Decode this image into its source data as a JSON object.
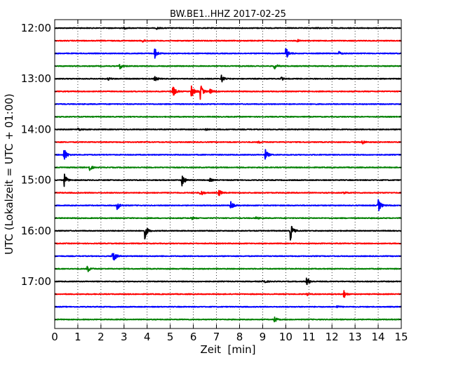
{
  "chart_data": {
    "type": "line",
    "title": "BW.BE1..HHZ 2017-02-25",
    "xlabel": "Zeit  [min]",
    "ylabel": "UTC (Lokalzeit = UTC + 01:00)",
    "xlim": [
      0,
      15
    ],
    "xticks": [
      "0",
      "1",
      "2",
      "3",
      "4",
      "5",
      "6",
      "7",
      "8",
      "9",
      "10",
      "11",
      "12",
      "13",
      "14",
      "15"
    ],
    "y_tick_labels": [
      "12:00",
      "13:00",
      "14:00",
      "15:00",
      "16:00",
      "17:00"
    ],
    "grid": "vertical dotted lines at each minute",
    "colors": [
      "#000000",
      "#ff0000",
      "#0000ff",
      "#008000"
    ],
    "series": [
      {
        "start": "12:00",
        "events": [
          [
            3.0,
            0.12
          ],
          [
            4.4,
            0.15
          ],
          [
            11.3,
            0.1
          ]
        ]
      },
      {
        "start": "12:15",
        "events": [
          [
            3.8,
            0.2
          ],
          [
            10.5,
            0.15
          ]
        ]
      },
      {
        "start": "12:30",
        "events": [
          [
            4.3,
            1.0
          ],
          [
            10.0,
            0.9
          ],
          [
            12.3,
            0.25
          ]
        ]
      },
      {
        "start": "12:45",
        "events": [
          [
            2.8,
            0.45
          ],
          [
            9.5,
            0.45
          ]
        ]
      },
      {
        "start": "13:00",
        "events": [
          [
            2.3,
            0.2
          ],
          [
            4.3,
            0.5
          ],
          [
            7.2,
            0.6
          ],
          [
            9.8,
            0.2
          ]
        ]
      },
      {
        "start": "13:15",
        "events": [
          [
            5.1,
            0.9
          ],
          [
            5.9,
            1.1
          ],
          [
            6.3,
            1.0
          ],
          [
            6.7,
            0.4
          ]
        ]
      },
      {
        "start": "13:30",
        "events": []
      },
      {
        "start": "13:45",
        "events": []
      },
      {
        "start": "14:00",
        "events": [
          [
            1.0,
            0.2
          ],
          [
            6.5,
            0.15
          ]
        ]
      },
      {
        "start": "14:15",
        "events": [
          [
            8.8,
            0.2
          ],
          [
            13.3,
            0.35
          ]
        ]
      },
      {
        "start": "14:30",
        "events": [
          [
            0.4,
            1.0
          ],
          [
            9.1,
            0.85
          ]
        ]
      },
      {
        "start": "14:45",
        "events": [
          [
            1.5,
            0.45
          ]
        ]
      },
      {
        "start": "15:00",
        "events": [
          [
            0.4,
            1.0
          ],
          [
            5.5,
            1.0
          ],
          [
            6.7,
            0.25
          ]
        ]
      },
      {
        "start": "15:15",
        "events": [
          [
            6.3,
            0.55
          ],
          [
            7.1,
            0.5
          ],
          [
            12.5,
            0.2
          ]
        ]
      },
      {
        "start": "15:30",
        "events": [
          [
            2.7,
            0.7
          ],
          [
            7.6,
            0.65
          ],
          [
            14.0,
            1.0
          ]
        ]
      },
      {
        "start": "15:45",
        "events": [
          [
            5.9,
            0.2
          ],
          [
            8.7,
            0.2
          ]
        ]
      },
      {
        "start": "16:00",
        "events": [
          [
            3.9,
            1.0
          ],
          [
            10.2,
            1.2
          ]
        ]
      },
      {
        "start": "16:15",
        "events": []
      },
      {
        "start": "16:30",
        "events": [
          [
            2.5,
            1.3
          ]
        ]
      },
      {
        "start": "16:45",
        "events": [
          [
            1.4,
            0.6
          ]
        ]
      },
      {
        "start": "17:00",
        "events": [
          [
            9.0,
            0.4
          ],
          [
            10.9,
            0.7
          ]
        ]
      },
      {
        "start": "17:15",
        "events": [
          [
            10.9,
            0.2
          ],
          [
            12.5,
            0.6
          ]
        ]
      },
      {
        "start": "17:30",
        "events": [
          [
            12.2,
            0.15
          ]
        ]
      },
      {
        "start": "17:45",
        "events": [
          [
            9.5,
            0.45
          ]
        ]
      }
    ]
  }
}
